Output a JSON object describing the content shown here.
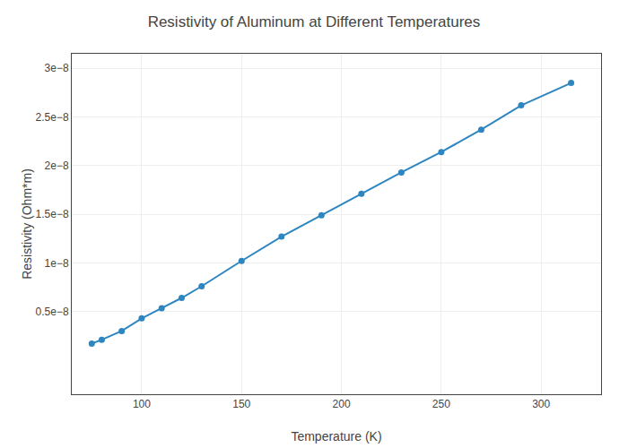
{
  "chart_data": {
    "type": "line",
    "title": "Resistivity of Aluminum at Different Temperatures",
    "x_label": "Temperature (K)",
    "y_label": "Resistivity (Ohm*m)",
    "x": [
      75,
      80,
      90,
      100,
      110,
      120,
      130,
      150,
      170,
      190,
      210,
      230,
      250,
      270,
      290,
      315
    ],
    "values": [
      1.7e-09,
      2.1e-09,
      3e-09,
      4.3e-09,
      5.35e-09,
      6.4e-09,
      7.6e-09,
      1.02e-08,
      1.27e-08,
      1.49e-08,
      1.71e-08,
      1.93e-08,
      2.14e-08,
      2.37e-08,
      2.62e-08,
      2.85e-08
    ],
    "color": "#2e86c1",
    "marker": "circle",
    "line_style": "solid",
    "xlim": [
      65,
      330
    ],
    "ylim": [
      -3.5e-09,
      3.15e-08
    ],
    "xticks": [
      100,
      150,
      200,
      250,
      300
    ],
    "yticks": [
      {
        "value": 5e-09,
        "label": "0.5e−8"
      },
      {
        "value": 1e-08,
        "label": "1e−8"
      },
      {
        "value": 1.5e-08,
        "label": "1.5e−8"
      },
      {
        "value": 2e-08,
        "label": "2e−8"
      },
      {
        "value": 2.5e-08,
        "label": "2.5e−8"
      },
      {
        "value": 3e-08,
        "label": "3e−8"
      }
    ],
    "grid": true
  }
}
